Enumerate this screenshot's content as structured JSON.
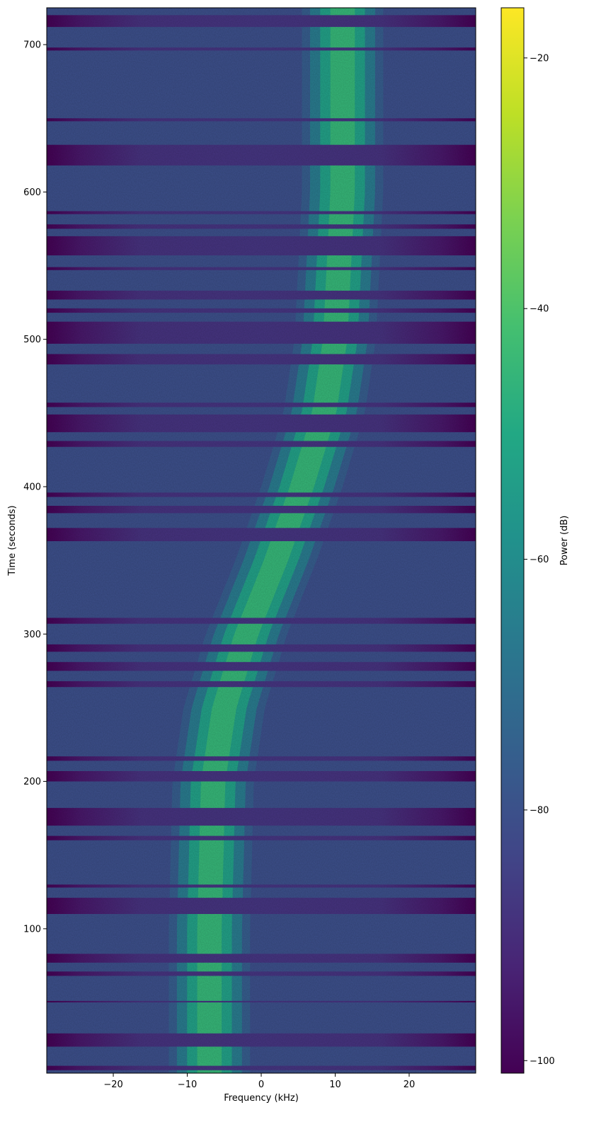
{
  "chart_data": {
    "type": "heatmap",
    "title": "",
    "xlabel": "Frequency (kHz)",
    "ylabel": "Time (seconds)",
    "xlim": [
      -29,
      29
    ],
    "ylim": [
      2,
      725
    ],
    "x_ticks": [
      -20,
      -10,
      0,
      10,
      20
    ],
    "x_tick_labels": [
      "−20",
      "−10",
      "0",
      "10",
      "20"
    ],
    "y_ticks": [
      100,
      200,
      300,
      400,
      500,
      600,
      700
    ],
    "y_tick_labels": [
      "100",
      "200",
      "300",
      "400",
      "500",
      "600",
      "700"
    ],
    "colormap": "viridis",
    "grid": false,
    "noise_floor_db": -84,
    "signal_peak_db": -45,
    "signal_bandwidth_khz": 11,
    "signal_track": [
      {
        "t": 2,
        "f_khz": -7
      },
      {
        "t": 100,
        "f_khz": -7
      },
      {
        "t": 200,
        "f_khz": -6.5
      },
      {
        "t": 250,
        "f_khz": -5
      },
      {
        "t": 300,
        "f_khz": -2
      },
      {
        "t": 350,
        "f_khz": 2
      },
      {
        "t": 400,
        "f_khz": 5.5
      },
      {
        "t": 450,
        "f_khz": 8.5
      },
      {
        "t": 500,
        "f_khz": 10
      },
      {
        "t": 600,
        "f_khz": 11
      },
      {
        "t": 725,
        "f_khz": 11
      }
    ],
    "dropout_bands": [
      {
        "t0": 4,
        "t1": 7
      },
      {
        "t0": 20,
        "t1": 29
      },
      {
        "t0": 50,
        "t1": 51
      },
      {
        "t0": 68,
        "t1": 71
      },
      {
        "t0": 77,
        "t1": 83
      },
      {
        "t0": 110,
        "t1": 121
      },
      {
        "t0": 128,
        "t1": 130
      },
      {
        "t0": 160,
        "t1": 163
      },
      {
        "t0": 170,
        "t1": 182
      },
      {
        "t0": 200,
        "t1": 207
      },
      {
        "t0": 214,
        "t1": 217
      },
      {
        "t0": 264,
        "t1": 268
      },
      {
        "t0": 275,
        "t1": 281
      },
      {
        "t0": 288,
        "t1": 293
      },
      {
        "t0": 307,
        "t1": 311
      },
      {
        "t0": 363,
        "t1": 372
      },
      {
        "t0": 382,
        "t1": 387
      },
      {
        "t0": 393,
        "t1": 396
      },
      {
        "t0": 427,
        "t1": 431
      },
      {
        "t0": 437,
        "t1": 449
      },
      {
        "t0": 454,
        "t1": 457
      },
      {
        "t0": 483,
        "t1": 490
      },
      {
        "t0": 497,
        "t1": 512
      },
      {
        "t0": 518,
        "t1": 521
      },
      {
        "t0": 527,
        "t1": 533
      },
      {
        "t0": 547,
        "t1": 549
      },
      {
        "t0": 557,
        "t1": 570
      },
      {
        "t0": 575,
        "t1": 578
      },
      {
        "t0": 585,
        "t1": 587
      },
      {
        "t0": 618,
        "t1": 632
      },
      {
        "t0": 648,
        "t1": 650
      },
      {
        "t0": 696,
        "t1": 698
      },
      {
        "t0": 712,
        "t1": 720
      }
    ],
    "colorbar": {
      "label": "Power (dB)",
      "range": [
        -101,
        -16
      ],
      "ticks": [
        -100,
        -80,
        -60,
        -40,
        -20
      ],
      "tick_labels": [
        "−100",
        "−80",
        "−60",
        "−40",
        "−20"
      ]
    }
  }
}
